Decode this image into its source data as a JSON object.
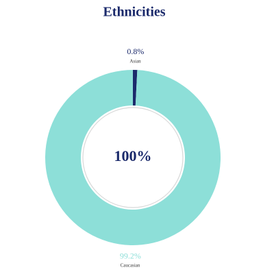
{
  "chart_data": {
    "type": "donut",
    "title": "Ethnicities",
    "center_label": "100%",
    "categories": [
      "Asian",
      "Caucasian"
    ],
    "values": [
      0.8,
      99.2
    ],
    "value_labels": [
      "0.8%",
      "99.2%"
    ],
    "colors": [
      "#1b2a6b",
      "#8ddfd8"
    ]
  }
}
